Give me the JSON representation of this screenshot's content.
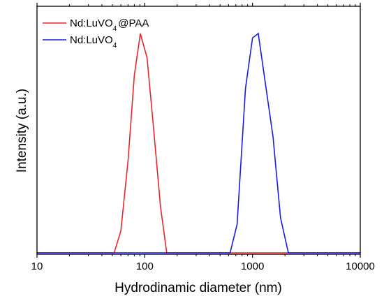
{
  "chart_data": {
    "type": "line",
    "xlabel": "Hydrodinamic diameter (nm)",
    "ylabel": "Intensity (a.u.)",
    "xscale": "log",
    "xlim": [
      10,
      10000
    ],
    "ylim": [
      0,
      100
    ],
    "xticks": [
      {
        "value": 10,
        "label": "10"
      },
      {
        "value": 100,
        "label": "100"
      },
      {
        "value": 1000,
        "label": "1000"
      },
      {
        "value": 10000,
        "label": "10000"
      }
    ],
    "grid": false,
    "legend_position": "top-left",
    "series": [
      {
        "name": "Nd:LuVO4@PAA",
        "legend_parts": {
          "base": "Nd:LuVO",
          "sub": "4",
          "suffix": "@PAA"
        },
        "color": "#e8262b",
        "points": [
          [
            10,
            0
          ],
          [
            52,
            0
          ],
          [
            60,
            10
          ],
          [
            70,
            42
          ],
          [
            80,
            81
          ],
          [
            91,
            100
          ],
          [
            105,
            89
          ],
          [
            120,
            58
          ],
          [
            140,
            21
          ],
          [
            160,
            0
          ],
          [
            10000,
            0
          ]
        ]
      },
      {
        "name": "Nd:LuVO4",
        "legend_parts": {
          "base": "Nd:LuVO",
          "sub": "4",
          "suffix": ""
        },
        "color": "#1a1ae6",
        "points": [
          [
            10,
            0
          ],
          [
            620,
            0
          ],
          [
            720,
            13
          ],
          [
            860,
            75
          ],
          [
            1000,
            98
          ],
          [
            1130,
            100
          ],
          [
            1300,
            79
          ],
          [
            1550,
            53
          ],
          [
            1820,
            16
          ],
          [
            2150,
            0
          ],
          [
            10000,
            0
          ]
        ]
      }
    ]
  }
}
